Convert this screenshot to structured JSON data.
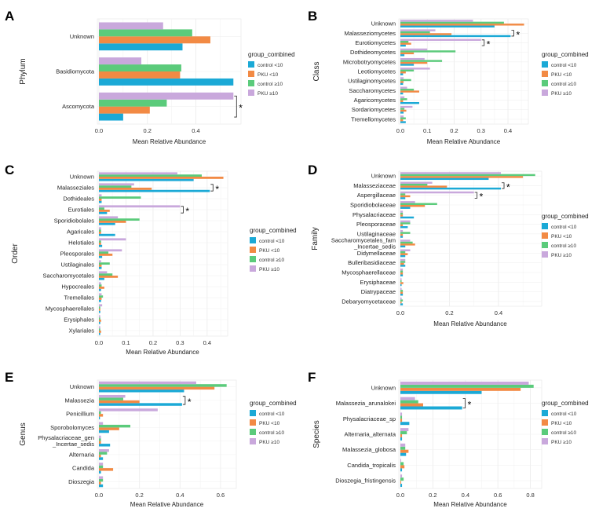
{
  "legend": {
    "title": "group_combined",
    "items": [
      {
        "key": "c_lt",
        "label": "control <10",
        "color": "#1BA9D6"
      },
      {
        "key": "p_lt",
        "label": "PKU <10",
        "color": "#F28A44"
      },
      {
        "key": "c_ge",
        "label": "control ≥10",
        "color": "#5BCB7B"
      },
      {
        "key": "p_ge",
        "label": "PKU ≥10",
        "color": "#C9A8DC"
      }
    ]
  },
  "star": "*",
  "chart_data": [
    {
      "panel": "A",
      "type": "bar",
      "orientation": "horizontal",
      "xlabel": "Mean Relative Abundance",
      "ylabel": "Phylum",
      "xlim": [
        0,
        0.58
      ],
      "xticks": [
        0.0,
        0.2,
        0.4
      ],
      "xtick_labels": [
        "0.0",
        "0.2",
        "0.4"
      ],
      "categories": [
        "Unknown",
        "Basidiomycota",
        "Ascomycota"
      ],
      "series": [
        {
          "name": "control <10",
          "values": [
            0.345,
            0.555,
            0.1
          ]
        },
        {
          "name": "PKU <10",
          "values": [
            0.46,
            0.335,
            0.21
          ]
        },
        {
          "name": "control ≥10",
          "values": [
            0.385,
            0.34,
            0.28
          ]
        },
        {
          "name": "PKU ≥10",
          "values": [
            0.265,
            0.175,
            0.555
          ]
        }
      ],
      "significant": [
        2
      ]
    },
    {
      "panel": "B",
      "type": "bar",
      "orientation": "horizontal",
      "xlabel": "Mean Relative Abundance",
      "ylabel": "Class",
      "xlim": [
        0,
        0.47
      ],
      "xticks": [
        0.0,
        0.1,
        0.2,
        0.3,
        0.4
      ],
      "xtick_labels": [
        "0.0",
        "0.1",
        "0.2",
        "0.3",
        "0.4"
      ],
      "categories": [
        "Unknown",
        "Malasseziomycetes",
        "Eurotiomycetes",
        "Dothideomycetes",
        "Microbotryomycetes",
        "Leotiomycetes",
        "Ustilaginomycetes",
        "Saccharomycetes",
        "Agaricomycetes",
        "Sordariomycetes",
        "Tremellomycetes"
      ],
      "series": [
        {
          "name": "control <10",
          "values": [
            0.35,
            0.41,
            0.02,
            0.015,
            0.05,
            0.01,
            0.01,
            0.01,
            0.07,
            0.012,
            0.02
          ]
        },
        {
          "name": "PKU <10",
          "values": [
            0.46,
            0.19,
            0.04,
            0.05,
            0.1,
            0.02,
            0.012,
            0.07,
            0.01,
            0.022,
            0.01
          ]
        },
        {
          "name": "control ≥10",
          "values": [
            0.385,
            0.11,
            0.03,
            0.205,
            0.155,
            0.05,
            0.04,
            0.05,
            0.025,
            0.015,
            0.02
          ]
        },
        {
          "name": "PKU ≥10",
          "values": [
            0.27,
            0.13,
            0.3,
            0.1,
            0.09,
            0.11,
            0.012,
            0.025,
            0.015,
            0.045,
            0.012
          ]
        }
      ],
      "significant": [
        1,
        2
      ]
    },
    {
      "panel": "C",
      "type": "bar",
      "orientation": "horizontal",
      "xlabel": "Mean Relative Abundance",
      "ylabel": "Order",
      "xlim": [
        0,
        0.47
      ],
      "xticks": [
        0.0,
        0.1,
        0.2,
        0.3,
        0.4
      ],
      "xtick_labels": [
        "0.0",
        "0.1",
        "0.2",
        "0.3",
        "0.4"
      ],
      "categories": [
        "Unknown",
        "Malasseziales",
        "Dothideales",
        "Eurotiales",
        "Sporidiobolales",
        "Agaricales",
        "Helotiales",
        "Pleosporales",
        "Ustilaginales",
        "Saccharomycetales",
        "Hypocreales",
        "Tremellales",
        "Mycosphaerellales",
        "Erysiphales",
        "Xylariales"
      ],
      "series": [
        {
          "name": "control <10",
          "values": [
            0.35,
            0.41,
            0.01,
            0.03,
            0.06,
            0.06,
            0.012,
            0.012,
            0.01,
            0.02,
            0.008,
            0.008,
            0.005,
            0.005,
            0.005
          ]
        },
        {
          "name": "PKU <10",
          "values": [
            0.46,
            0.195,
            0.01,
            0.04,
            0.1,
            0.008,
            0.008,
            0.05,
            0.01,
            0.07,
            0.02,
            0.01,
            0.005,
            0.008,
            0.008
          ]
        },
        {
          "name": "control ≥10",
          "values": [
            0.38,
            0.12,
            0.155,
            0.02,
            0.15,
            0.008,
            0.008,
            0.035,
            0.04,
            0.05,
            0.01,
            0.015,
            0.005,
            0.005,
            0.005
          ]
        },
        {
          "name": "PKU ≥10",
          "values": [
            0.29,
            0.13,
            0.01,
            0.3,
            0.07,
            0.008,
            0.1,
            0.085,
            0.008,
            0.03,
            0.008,
            0.01,
            0.012,
            0.005,
            0.005
          ]
        }
      ],
      "significant": [
        1,
        3
      ]
    },
    {
      "panel": "D",
      "type": "bar",
      "orientation": "horizontal",
      "xlabel": "Mean Relative Abundance",
      "ylabel": "Family",
      "xlim": [
        0,
        0.57
      ],
      "xticks": [
        0.0,
        0.2,
        0.4
      ],
      "xtick_labels": [
        "0.0",
        "0.2",
        "0.4"
      ],
      "categories": [
        "Unknown",
        "Malasseziaceae",
        "Aspergillaceae",
        "Sporidiobolaceae",
        "Physalacriaceae",
        "Pleosporaceae",
        "Ustilaginaceae",
        "Saccharomycetales_fam\n_Incertae_sedis",
        "Didymellaceae",
        "Bulleribasidiaceae",
        "Mycosphaerellaceae",
        "Erysiphaceae",
        "Diatrypaceae",
        "Debaryomycetaceae"
      ],
      "series": [
        {
          "name": "control <10",
          "values": [
            0.36,
            0.41,
            0.02,
            0.04,
            0.055,
            0.03,
            0.01,
            0.02,
            0.02,
            0.02,
            0.01,
            0.005,
            0.01,
            0.01
          ]
        },
        {
          "name": "PKU <10",
          "values": [
            0.5,
            0.19,
            0.04,
            0.1,
            0.01,
            0.01,
            0.01,
            0.06,
            0.03,
            0.015,
            0.01,
            0.012,
            0.01,
            0.005
          ]
        },
        {
          "name": "control ≥10",
          "values": [
            0.55,
            0.11,
            0.02,
            0.15,
            0.01,
            0.04,
            0.04,
            0.05,
            0.02,
            0.02,
            0.01,
            0.005,
            0.01,
            0.01
          ]
        },
        {
          "name": "PKU ≥10",
          "values": [
            0.41,
            0.13,
            0.3,
            0.06,
            0.01,
            0.04,
            0.01,
            0.04,
            0.04,
            0.02,
            0.01,
            0.005,
            0.005,
            0.005
          ]
        }
      ],
      "significant": [
        1,
        2
      ]
    },
    {
      "panel": "E",
      "type": "bar",
      "orientation": "horizontal",
      "xlabel": "Mean Relative Abundance",
      "ylabel": "Genus",
      "xlim": [
        0,
        0.67
      ],
      "xticks": [
        0.0,
        0.2,
        0.4,
        0.6
      ],
      "xtick_labels": [
        "0.0",
        "0.2",
        "0.4",
        "0.6"
      ],
      "categories": [
        "Unknown",
        "Malassezia",
        "Penicillium",
        "Sporobolomyces",
        "Physalacriaceae_gen\n_Incertae_sedis",
        "Alternaria",
        "Candida",
        "Dioszegia"
      ],
      "series": [
        {
          "name": "control <10",
          "values": [
            0.42,
            0.41,
            0.005,
            0.05,
            0.055,
            0.02,
            0.01,
            0.02
          ]
        },
        {
          "name": "PKU <10",
          "values": [
            0.57,
            0.2,
            0.02,
            0.1,
            0.01,
            0.01,
            0.07,
            0.01
          ]
        },
        {
          "name": "control ≥10",
          "values": [
            0.63,
            0.12,
            0.01,
            0.155,
            0.01,
            0.04,
            0.02,
            0.02
          ]
        },
        {
          "name": "PKU ≥10",
          "values": [
            0.48,
            0.13,
            0.29,
            0.02,
            0.01,
            0.05,
            0.02,
            0.02
          ]
        }
      ],
      "significant": [
        1
      ]
    },
    {
      "panel": "F",
      "type": "bar",
      "orientation": "horizontal",
      "xlabel": "Mean Relative Abundance",
      "ylabel": "Species",
      "xlim": [
        0,
        0.86
      ],
      "xticks": [
        0.0,
        0.2,
        0.4,
        0.6,
        0.8
      ],
      "xtick_labels": [
        "0.0",
        "0.2",
        "0.4",
        "0.6",
        "0.8"
      ],
      "categories": [
        "Unknown",
        "Malassezia_arunalokei",
        "Physalacriaceae_sp",
        "Alternaria_alternata",
        "Malassezia_globosa",
        "Candida_tropicalis",
        "Dioszegia_fristingensis"
      ],
      "series": [
        {
          "name": "control <10",
          "values": [
            0.5,
            0.38,
            0.055,
            0.01,
            0.035,
            0.01,
            0.01
          ]
        },
        {
          "name": "PKU <10",
          "values": [
            0.74,
            0.14,
            0.01,
            0.01,
            0.05,
            0.025,
            0.005
          ]
        },
        {
          "name": "control ≥10",
          "values": [
            0.82,
            0.11,
            0.01,
            0.04,
            0.03,
            0.02,
            0.02
          ]
        },
        {
          "name": "PKU ≥10",
          "values": [
            0.79,
            0.09,
            0.01,
            0.05,
            0.03,
            0.005,
            0.01
          ]
        }
      ],
      "significant": [
        1
      ]
    }
  ]
}
